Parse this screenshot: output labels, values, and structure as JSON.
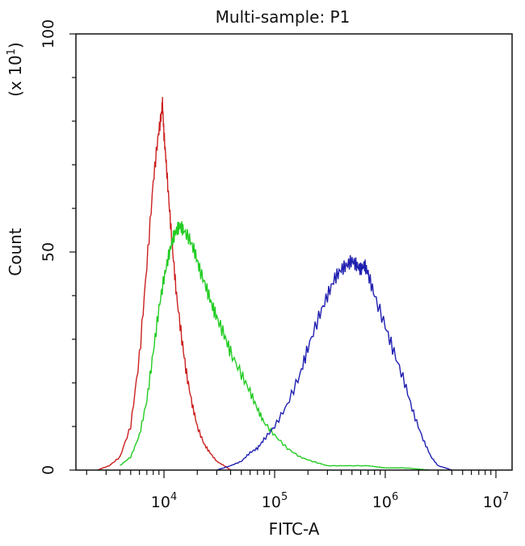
{
  "chart_data": {
    "type": "line",
    "title": "Multi-sample: P1",
    "xlabel": "FITC-A",
    "ylabel": "Count",
    "y_multiplier": "(x 10",
    "y_multiplier_exp": "1",
    "y_multiplier_close": ")",
    "x_scale": "log",
    "xlim": [
      1600,
      14000000
    ],
    "ylim": [
      0,
      100
    ],
    "x_ticks": [
      {
        "value": 10000,
        "base": "10",
        "exp": "4"
      },
      {
        "value": 100000,
        "base": "10",
        "exp": "5"
      },
      {
        "value": 1000000,
        "base": "10",
        "exp": "6"
      },
      {
        "value": 10000000,
        "base": "10",
        "exp": "7"
      }
    ],
    "y_ticks": [
      0,
      50,
      100
    ],
    "grid": false,
    "series": [
      {
        "color": "#cc1f1f",
        "x": [
          2500,
          3200,
          4000,
          5000,
          6000,
          7000,
          8000,
          8800,
          9400,
          9700,
          10000,
          10500,
          11200,
          12000,
          13000,
          14500,
          16000,
          18000,
          20000,
          23000,
          26000,
          30000,
          35000,
          40000
        ],
        "y": [
          0,
          1,
          3,
          10,
          26,
          47,
          66,
          76,
          81,
          84,
          77,
          70,
          60,
          50,
          40,
          30,
          22,
          15,
          10,
          6,
          4,
          2,
          1,
          0
        ]
      },
      {
        "color": "#22cc22",
        "x": [
          4000,
          5000,
          6000,
          7000,
          8000,
          9000,
          10000,
          11000,
          12000,
          13000,
          14000,
          15000,
          17000,
          19000,
          21000,
          24000,
          27000,
          30000,
          35000,
          40000,
          50000,
          60000,
          70000,
          80000,
          100000,
          130000,
          170000,
          220000,
          300000,
          450000,
          700000,
          1000000,
          1500000,
          2500000
        ],
        "y": [
          1,
          3,
          8,
          16,
          27,
          37,
          44,
          49,
          53,
          55,
          56,
          55,
          53,
          50,
          46,
          42,
          38,
          35,
          31,
          27,
          22,
          18,
          14,
          11,
          8,
          5,
          3,
          2,
          1,
          1,
          1,
          0.5,
          0.5,
          0
        ]
      },
      {
        "color": "#1f1fb0",
        "x": [
          30000,
          40000,
          50000,
          60000,
          70000,
          80000,
          100000,
          130000,
          170000,
          200000,
          250000,
          300000,
          350000,
          400000,
          450000,
          500000,
          550000,
          600000,
          650000,
          700000,
          800000,
          1000000,
          1200000,
          1500000,
          1800000,
          2200000,
          2600000,
          3000000,
          3500000,
          4000000
        ],
        "y": [
          0,
          1,
          2,
          4,
          5,
          7,
          10,
          15,
          22,
          28,
          35,
          40,
          44,
          46,
          47,
          48,
          47,
          46,
          47,
          45,
          40,
          33,
          27,
          20,
          13,
          7,
          3,
          1,
          0.5,
          0
        ]
      }
    ]
  }
}
